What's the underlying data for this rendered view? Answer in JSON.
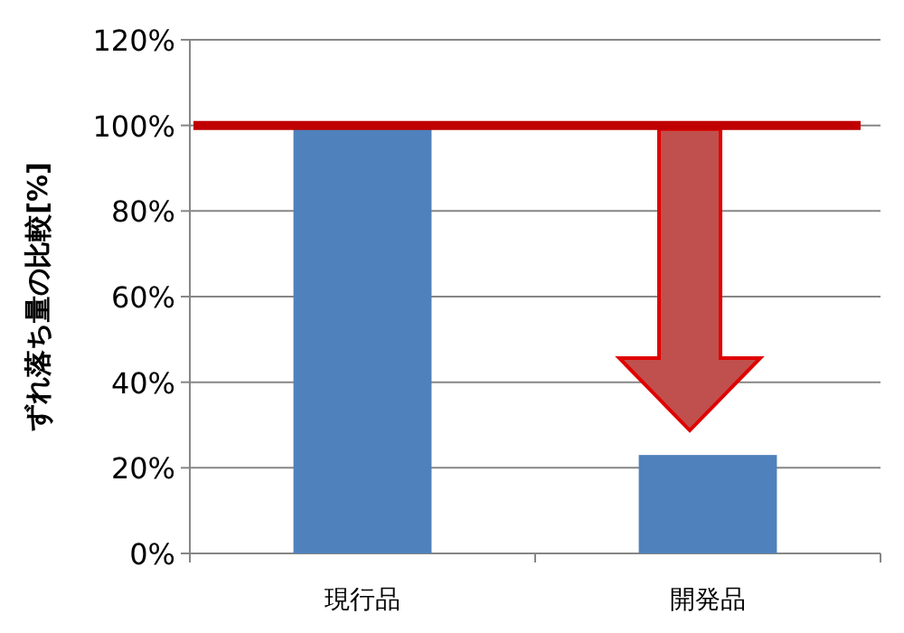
{
  "chart_data": {
    "type": "bar",
    "ylabel": "ずれ落ち量の比較[%]",
    "categories": [
      "現行品",
      "開発品"
    ],
    "values": [
      100,
      23
    ],
    "color": "#4f81bd",
    "ylim": [
      0,
      120
    ],
    "yticks": [
      {
        "value": 0,
        "label": "0%"
      },
      {
        "value": 20,
        "label": "20%"
      },
      {
        "value": 40,
        "label": "40%"
      },
      {
        "value": 60,
        "label": "60%"
      },
      {
        "value": 80,
        "label": "80%"
      },
      {
        "value": 100,
        "label": "100%"
      },
      {
        "value": 120,
        "label": "120%"
      }
    ],
    "grid": "y",
    "ref_lines": [
      {
        "axis": "y",
        "value": 100,
        "color": "#c00000"
      }
    ]
  }
}
